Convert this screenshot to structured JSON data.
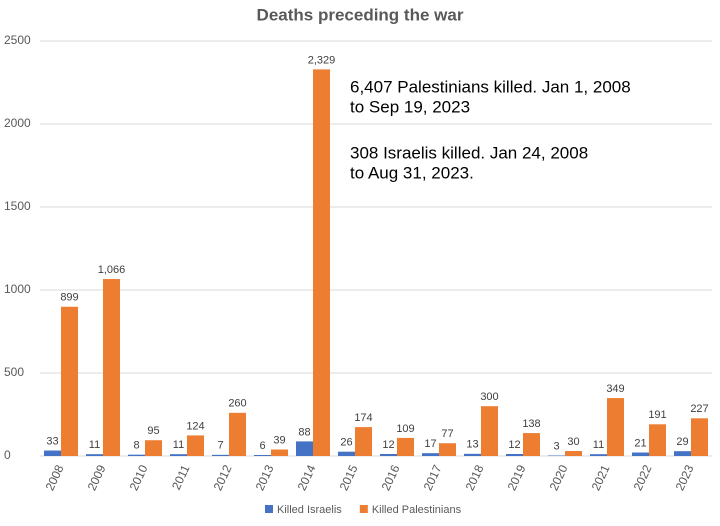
{
  "chart_data": {
    "type": "bar",
    "title": "Deaths preceding the war",
    "categories": [
      "2008",
      "2009",
      "2010",
      "2011",
      "2012",
      "2013",
      "2014",
      "2015",
      "2016",
      "2017",
      "2018",
      "2019",
      "2020",
      "2021",
      "2022",
      "2023"
    ],
    "series": [
      {
        "name": "Killed Israelis",
        "color": "#4472c4",
        "values": [
          33,
          11,
          8,
          11,
          7,
          6,
          88,
          26,
          12,
          17,
          13,
          12,
          3,
          11,
          21,
          29
        ]
      },
      {
        "name": "Killed Palestinians",
        "color": "#ed7d31",
        "values": [
          899,
          1066,
          95,
          124,
          260,
          39,
          2329,
          174,
          109,
          77,
          300,
          138,
          30,
          349,
          191,
          227
        ],
        "value_labels": [
          "899",
          "1,066",
          "95",
          "124",
          "260",
          "39",
          "2,329",
          "174",
          "109",
          "77",
          "300",
          "138",
          "30",
          "349",
          "191",
          "227"
        ]
      }
    ],
    "ylim": [
      0,
      2500
    ],
    "yticks": [
      0,
      500,
      1000,
      1500,
      2000,
      2500
    ],
    "grid": true,
    "legend": "bottom",
    "annotations": [
      [
        "6,407 Palestinians killed. Jan 1, 2008",
        "to Sep 19, 2023"
      ],
      [
        "308 Israelis killed. Jan 24, 2008",
        "to Aug 31, 2023."
      ]
    ]
  }
}
